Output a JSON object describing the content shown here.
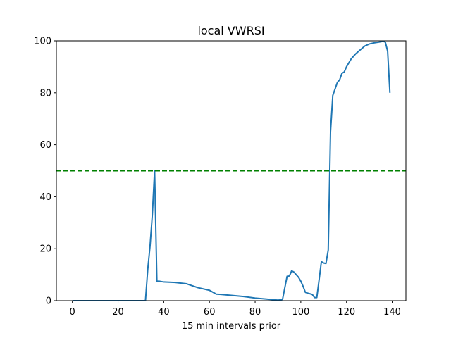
{
  "chart_data": {
    "type": "line",
    "title": "local VWRSI",
    "xlabel": "15 min intervals prior",
    "ylabel": "",
    "xlim": [
      -7,
      146
    ],
    "ylim": [
      0,
      100
    ],
    "xticks": [
      0,
      20,
      40,
      60,
      80,
      100,
      120,
      140
    ],
    "yticks": [
      0,
      20,
      40,
      60,
      80,
      100
    ],
    "grid": false,
    "series": [
      {
        "color": "#1f77b4",
        "x": [
          0,
          10,
          20,
          30,
          32,
          33,
          34,
          35,
          36,
          37,
          38,
          40,
          45,
          50,
          55,
          60,
          62,
          63,
          65,
          70,
          75,
          80,
          85,
          90,
          91,
          92,
          93,
          94,
          95,
          96,
          97,
          98,
          99,
          100,
          101,
          102,
          103,
          105,
          106,
          107,
          108,
          109,
          110,
          111,
          112,
          113,
          114,
          115,
          116,
          117,
          118,
          119,
          120,
          122,
          124,
          126,
          128,
          130,
          132,
          134,
          136,
          137,
          138,
          139
        ],
        "y": [
          0,
          0,
          0,
          0,
          0,
          12,
          21,
          33,
          50,
          7.5,
          7.5,
          7.2,
          7,
          6.5,
          5,
          4,
          3,
          2.5,
          2.4,
          2,
          1.6,
          1,
          0.6,
          0.2,
          0.3,
          0.5,
          5,
          9.4,
          9.5,
          11.5,
          11,
          10,
          9,
          7.5,
          5.5,
          3.2,
          2.9,
          2.4,
          1.2,
          1.2,
          8,
          15,
          14.5,
          14.3,
          19.5,
          65,
          79,
          81.5,
          84,
          85,
          87.5,
          88,
          90,
          93,
          95,
          96.5,
          98,
          98.8,
          99.2,
          99.5,
          99.8,
          99.5,
          96,
          80
        ]
      },
      {
        "color": "#008000",
        "x": [
          -7,
          146
        ],
        "y": [
          50,
          50
        ]
      }
    ]
  }
}
